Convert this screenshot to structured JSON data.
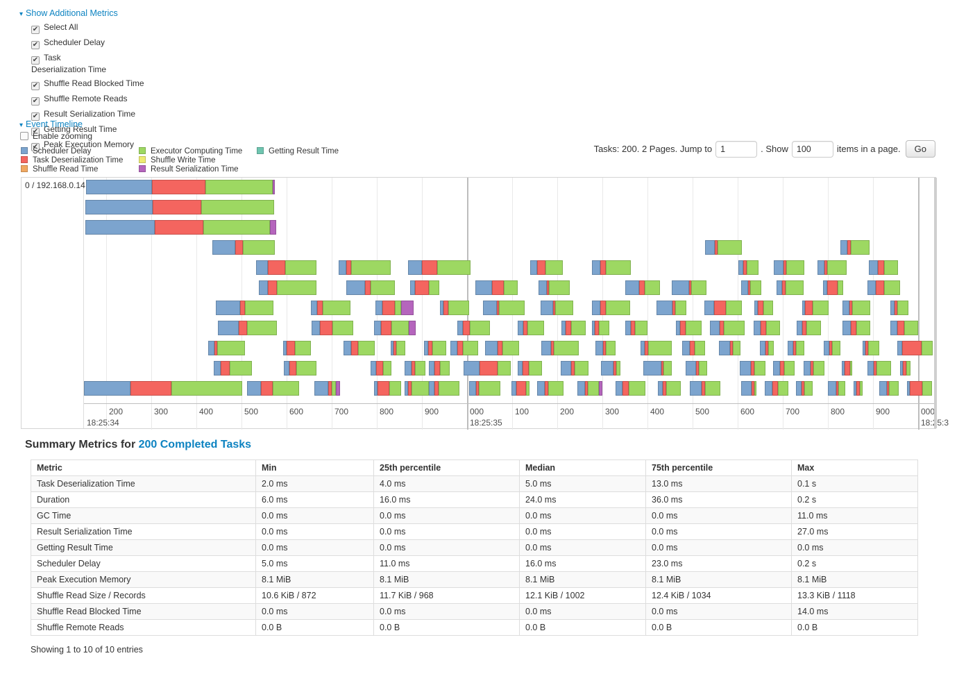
{
  "controls": {
    "show_additional_metrics": "Show Additional Metrics",
    "metrics": [
      {
        "label": "Select All",
        "checked": true,
        "narrow": false
      },
      {
        "label": "Scheduler Delay",
        "checked": true,
        "narrow": false
      },
      {
        "label": "Task Deserialization Time",
        "checked": true,
        "narrow": true
      },
      {
        "label": "Shuffle Read Blocked Time",
        "checked": true,
        "narrow": false
      },
      {
        "label": "Shuffle Remote Reads",
        "checked": true,
        "narrow": false
      },
      {
        "label": "Result Serialization Time",
        "checked": true,
        "narrow": false
      },
      {
        "label": "Getting Result Time",
        "checked": true,
        "narrow": false
      },
      {
        "label": "Peak Execution Memory",
        "checked": true,
        "narrow": false
      }
    ],
    "event_timeline": "Event Timeline",
    "enable_zooming": {
      "label": "Enable zooming",
      "checked": false
    }
  },
  "legend": [
    {
      "label": "Scheduler Delay",
      "color": "#7CA4CE"
    },
    {
      "label": "Task Deserialization Time",
      "color": "#F4655F"
    },
    {
      "label": "Shuffle Read Time",
      "color": "#F0A862"
    },
    {
      "label": "Executor Computing Time",
      "color": "#9DD862"
    },
    {
      "label": "Shuffle Write Time",
      "color": "#EDEB73"
    },
    {
      "label": "Result Serialization Time",
      "color": "#B565BD"
    },
    {
      "label": "Getting Result Time",
      "color": "#6FC5B0"
    }
  ],
  "pagination": {
    "tasks_text": "Tasks: 200. 2 Pages. Jump to",
    "jump_value": "1",
    "show_text": ". Show",
    "show_value": "100",
    "items_text": "items in a page.",
    "go_label": "Go"
  },
  "timeline": {
    "group_label": "0 / 192.168.0.14",
    "bar_colors": [
      "#7CA4CE",
      "#F4655F",
      "#9DD862",
      "#B565BD"
    ],
    "ticks": [
      [
        32,
        "200"
      ],
      [
        97,
        "300"
      ],
      [
        162,
        "400"
      ],
      [
        227,
        "500"
      ],
      [
        292,
        "600"
      ],
      [
        357,
        "700"
      ],
      [
        422,
        "800"
      ],
      [
        487,
        "900"
      ],
      [
        552,
        "000"
      ],
      [
        617,
        "100"
      ],
      [
        682,
        "200"
      ],
      [
        747,
        "300"
      ],
      [
        812,
        "400"
      ],
      [
        877,
        "500"
      ],
      [
        942,
        "600"
      ],
      [
        1007,
        "700"
      ],
      [
        1072,
        "800"
      ],
      [
        1137,
        "900"
      ],
      [
        1202,
        "000"
      ]
    ],
    "majors": [
      [
        0,
        "18:25:34"
      ],
      [
        552,
        "18:25:35"
      ],
      [
        1202,
        "18:25:3"
      ]
    ],
    "rows": [
      [
        [
          3,
          95,
          77,
          97,
          3
        ]
      ],
      [
        [
          2,
          97,
          70,
          105,
          0
        ]
      ],
      [
        [
          2,
          100,
          70,
          96,
          9
        ]
      ],
      [
        [
          185,
          33,
          11,
          46,
          0
        ],
        [
          895,
          14,
          4,
          35,
          0
        ],
        [
          1090,
          10,
          5,
          27,
          0
        ]
      ],
      [
        [
          248,
          17,
          25,
          45,
          0
        ],
        [
          367,
          11,
          7,
          57,
          0
        ],
        [
          467,
          20,
          22,
          48,
          0
        ],
        [
          643,
          10,
          12,
          25,
          0
        ],
        [
          732,
          12,
          8,
          36,
          0
        ],
        [
          943,
          7,
          5,
          17,
          0
        ],
        [
          994,
          14,
          4,
          26,
          0
        ],
        [
          1057,
          10,
          4,
          28,
          0
        ],
        [
          1131,
          13,
          9,
          20,
          0
        ]
      ],
      [
        [
          252,
          13,
          13,
          57,
          0
        ],
        [
          378,
          27,
          8,
          35,
          0
        ],
        [
          470,
          7,
          20,
          15,
          0
        ],
        [
          564,
          24,
          17,
          20,
          0
        ],
        [
          655,
          12,
          3,
          30,
          0
        ],
        [
          780,
          20,
          8,
          22,
          0
        ],
        [
          847,
          25,
          3,
          22,
          0
        ],
        [
          947,
          10,
          3,
          16,
          0
        ],
        [
          998,
          8,
          5,
          26,
          0
        ],
        [
          1065,
          6,
          15,
          8,
          0
        ],
        [
          1129,
          12,
          12,
          23,
          0
        ]
      ],
      [
        [
          190,
          35,
          7,
          41,
          0
        ],
        [
          327,
          9,
          8,
          40,
          0
        ],
        [
          420,
          10,
          18,
          9,
          18
        ],
        [
          513,
          5,
          7,
          30,
          0
        ],
        [
          575,
          20,
          3,
          37,
          0
        ],
        [
          658,
          18,
          3,
          26,
          0
        ],
        [
          732,
          12,
          8,
          35,
          0
        ],
        [
          825,
          23,
          4,
          16,
          0
        ],
        [
          894,
          14,
          17,
          23,
          0
        ],
        [
          966,
          5,
          8,
          14,
          0
        ],
        [
          1035,
          4,
          11,
          23,
          0
        ],
        [
          1093,
          10,
          4,
          26,
          0
        ],
        [
          1162,
          6,
          4,
          16,
          0
        ]
      ],
      [
        [
          193,
          30,
          12,
          43,
          0
        ],
        [
          328,
          12,
          18,
          30,
          0
        ],
        [
          418,
          10,
          15,
          25,
          10
        ],
        [
          538,
          8,
          10,
          29,
          0
        ],
        [
          625,
          8,
          6,
          24,
          0
        ],
        [
          688,
          6,
          8,
          21,
          0
        ],
        [
          732,
          4,
          6,
          15,
          0
        ],
        [
          780,
          8,
          6,
          18,
          0
        ],
        [
          853,
          6,
          8,
          23,
          0
        ],
        [
          902,
          14,
          6,
          30,
          0
        ],
        [
          965,
          10,
          8,
          20,
          0
        ],
        [
          1027,
          8,
          6,
          21,
          0
        ],
        [
          1093,
          12,
          8,
          20,
          0
        ],
        [
          1162,
          10,
          10,
          20,
          0
        ]
      ],
      [
        [
          179,
          9,
          4,
          40,
          0
        ],
        [
          287,
          5,
          12,
          23,
          0
        ],
        [
          374,
          11,
          10,
          24,
          0
        ],
        [
          442,
          4,
          4,
          13,
          0
        ],
        [
          490,
          6,
          6,
          20,
          0
        ],
        [
          528,
          10,
          8,
          22,
          0
        ],
        [
          578,
          18,
          7,
          24,
          0
        ],
        [
          659,
          14,
          4,
          36,
          0
        ],
        [
          737,
          11,
          4,
          14,
          0
        ],
        [
          802,
          6,
          5,
          34,
          0
        ],
        [
          862,
          11,
          7,
          15,
          0
        ],
        [
          915,
          16,
          4,
          11,
          0
        ],
        [
          974,
          8,
          4,
          8,
          0
        ],
        [
          1014,
          8,
          4,
          12,
          0
        ],
        [
          1066,
          8,
          4,
          12,
          0
        ],
        [
          1122,
          4,
          4,
          16,
          0
        ],
        [
          1172,
          7,
          28,
          16,
          0
        ]
      ],
      [
        [
          187,
          10,
          13,
          32,
          0
        ],
        [
          288,
          8,
          10,
          29,
          0
        ],
        [
          413,
          8,
          10,
          12,
          0
        ],
        [
          462,
          10,
          5,
          15,
          0
        ],
        [
          497,
          8,
          8,
          14,
          0
        ],
        [
          547,
          23,
          26,
          19,
          0
        ],
        [
          625,
          7,
          9,
          19,
          0
        ],
        [
          687,
          15,
          5,
          20,
          0
        ],
        [
          745,
          18,
          4,
          6,
          0
        ],
        [
          806,
          26,
          3,
          12,
          0
        ],
        [
          867,
          15,
          4,
          12,
          0
        ],
        [
          945,
          16,
          5,
          16,
          0
        ],
        [
          993,
          10,
          6,
          15,
          0
        ],
        [
          1037,
          10,
          4,
          16,
          0
        ],
        [
          1092,
          4,
          8,
          3,
          0
        ],
        [
          1129,
          9,
          4,
          21,
          0
        ],
        [
          1176,
          4,
          5,
          6,
          0
        ]
      ],
      [
        [
          0,
          67,
          59,
          102,
          0
        ],
        [
          235,
          20,
          17,
          38,
          0
        ],
        [
          332,
          20,
          5,
          6,
          6
        ],
        [
          418,
          5,
          17,
          17,
          0
        ],
        [
          462,
          5,
          5,
          25,
          0
        ],
        [
          497,
          8,
          6,
          30,
          0
        ],
        [
          555,
          10,
          4,
          31,
          0
        ],
        [
          616,
          7,
          14,
          5,
          0
        ],
        [
          653,
          11,
          5,
          22,
          0
        ],
        [
          711,
          11,
          4,
          16,
          5
        ],
        [
          766,
          10,
          9,
          24,
          0
        ],
        [
          827,
          7,
          5,
          21,
          0
        ],
        [
          873,
          17,
          5,
          22,
          0
        ],
        [
          947,
          15,
          4,
          3,
          0
        ],
        [
          981,
          11,
          8,
          15,
          0
        ],
        [
          1026,
          8,
          4,
          12,
          0
        ],
        [
          1072,
          12,
          3,
          10,
          0
        ],
        [
          1109,
          4,
          5,
          4,
          0
        ],
        [
          1146,
          11,
          3,
          14,
          0
        ],
        [
          1186,
          4,
          18,
          14,
          0
        ]
      ]
    ]
  },
  "summary": {
    "title_prefix": "Summary Metrics for ",
    "title_link": "200 Completed Tasks",
    "columns": [
      "Metric",
      "Min",
      "25th percentile",
      "Median",
      "75th percentile",
      "Max"
    ],
    "rows": [
      {
        "metric": "Task Deserialization Time",
        "values": [
          "2.0 ms",
          "4.0 ms",
          "5.0 ms",
          "13.0 ms",
          "0.1 s"
        ]
      },
      {
        "metric": "Duration",
        "values": [
          "6.0 ms",
          "16.0 ms",
          "24.0 ms",
          "36.0 ms",
          "0.2 s"
        ]
      },
      {
        "metric": "GC Time",
        "values": [
          "0.0 ms",
          "0.0 ms",
          "0.0 ms",
          "0.0 ms",
          "11.0 ms"
        ]
      },
      {
        "metric": "Result Serialization Time",
        "values": [
          "0.0 ms",
          "0.0 ms",
          "0.0 ms",
          "0.0 ms",
          "27.0 ms"
        ]
      },
      {
        "metric": "Getting Result Time",
        "values": [
          "0.0 ms",
          "0.0 ms",
          "0.0 ms",
          "0.0 ms",
          "0.0 ms"
        ]
      },
      {
        "metric": "Scheduler Delay",
        "values": [
          "5.0 ms",
          "11.0 ms",
          "16.0 ms",
          "23.0 ms",
          "0.2 s"
        ]
      },
      {
        "metric": "Peak Execution Memory",
        "values": [
          "8.1 MiB",
          "8.1 MiB",
          "8.1 MiB",
          "8.1 MiB",
          "8.1 MiB"
        ]
      },
      {
        "metric": "Shuffle Read Size / Records",
        "values": [
          "10.6 KiB / 872",
          "11.7 KiB / 968",
          "12.1 KiB / 1002",
          "12.4 KiB / 1034",
          "13.3 KiB / 1118"
        ]
      },
      {
        "metric": "Shuffle Read Blocked Time",
        "values": [
          "0.0 ms",
          "0.0 ms",
          "0.0 ms",
          "0.0 ms",
          "14.0 ms"
        ]
      },
      {
        "metric": "Shuffle Remote Reads",
        "values": [
          "0.0 B",
          "0.0 B",
          "0.0 B",
          "0.0 B",
          "0.0 B"
        ]
      }
    ],
    "footer": "Showing 1 to 10 of 10 entries"
  }
}
